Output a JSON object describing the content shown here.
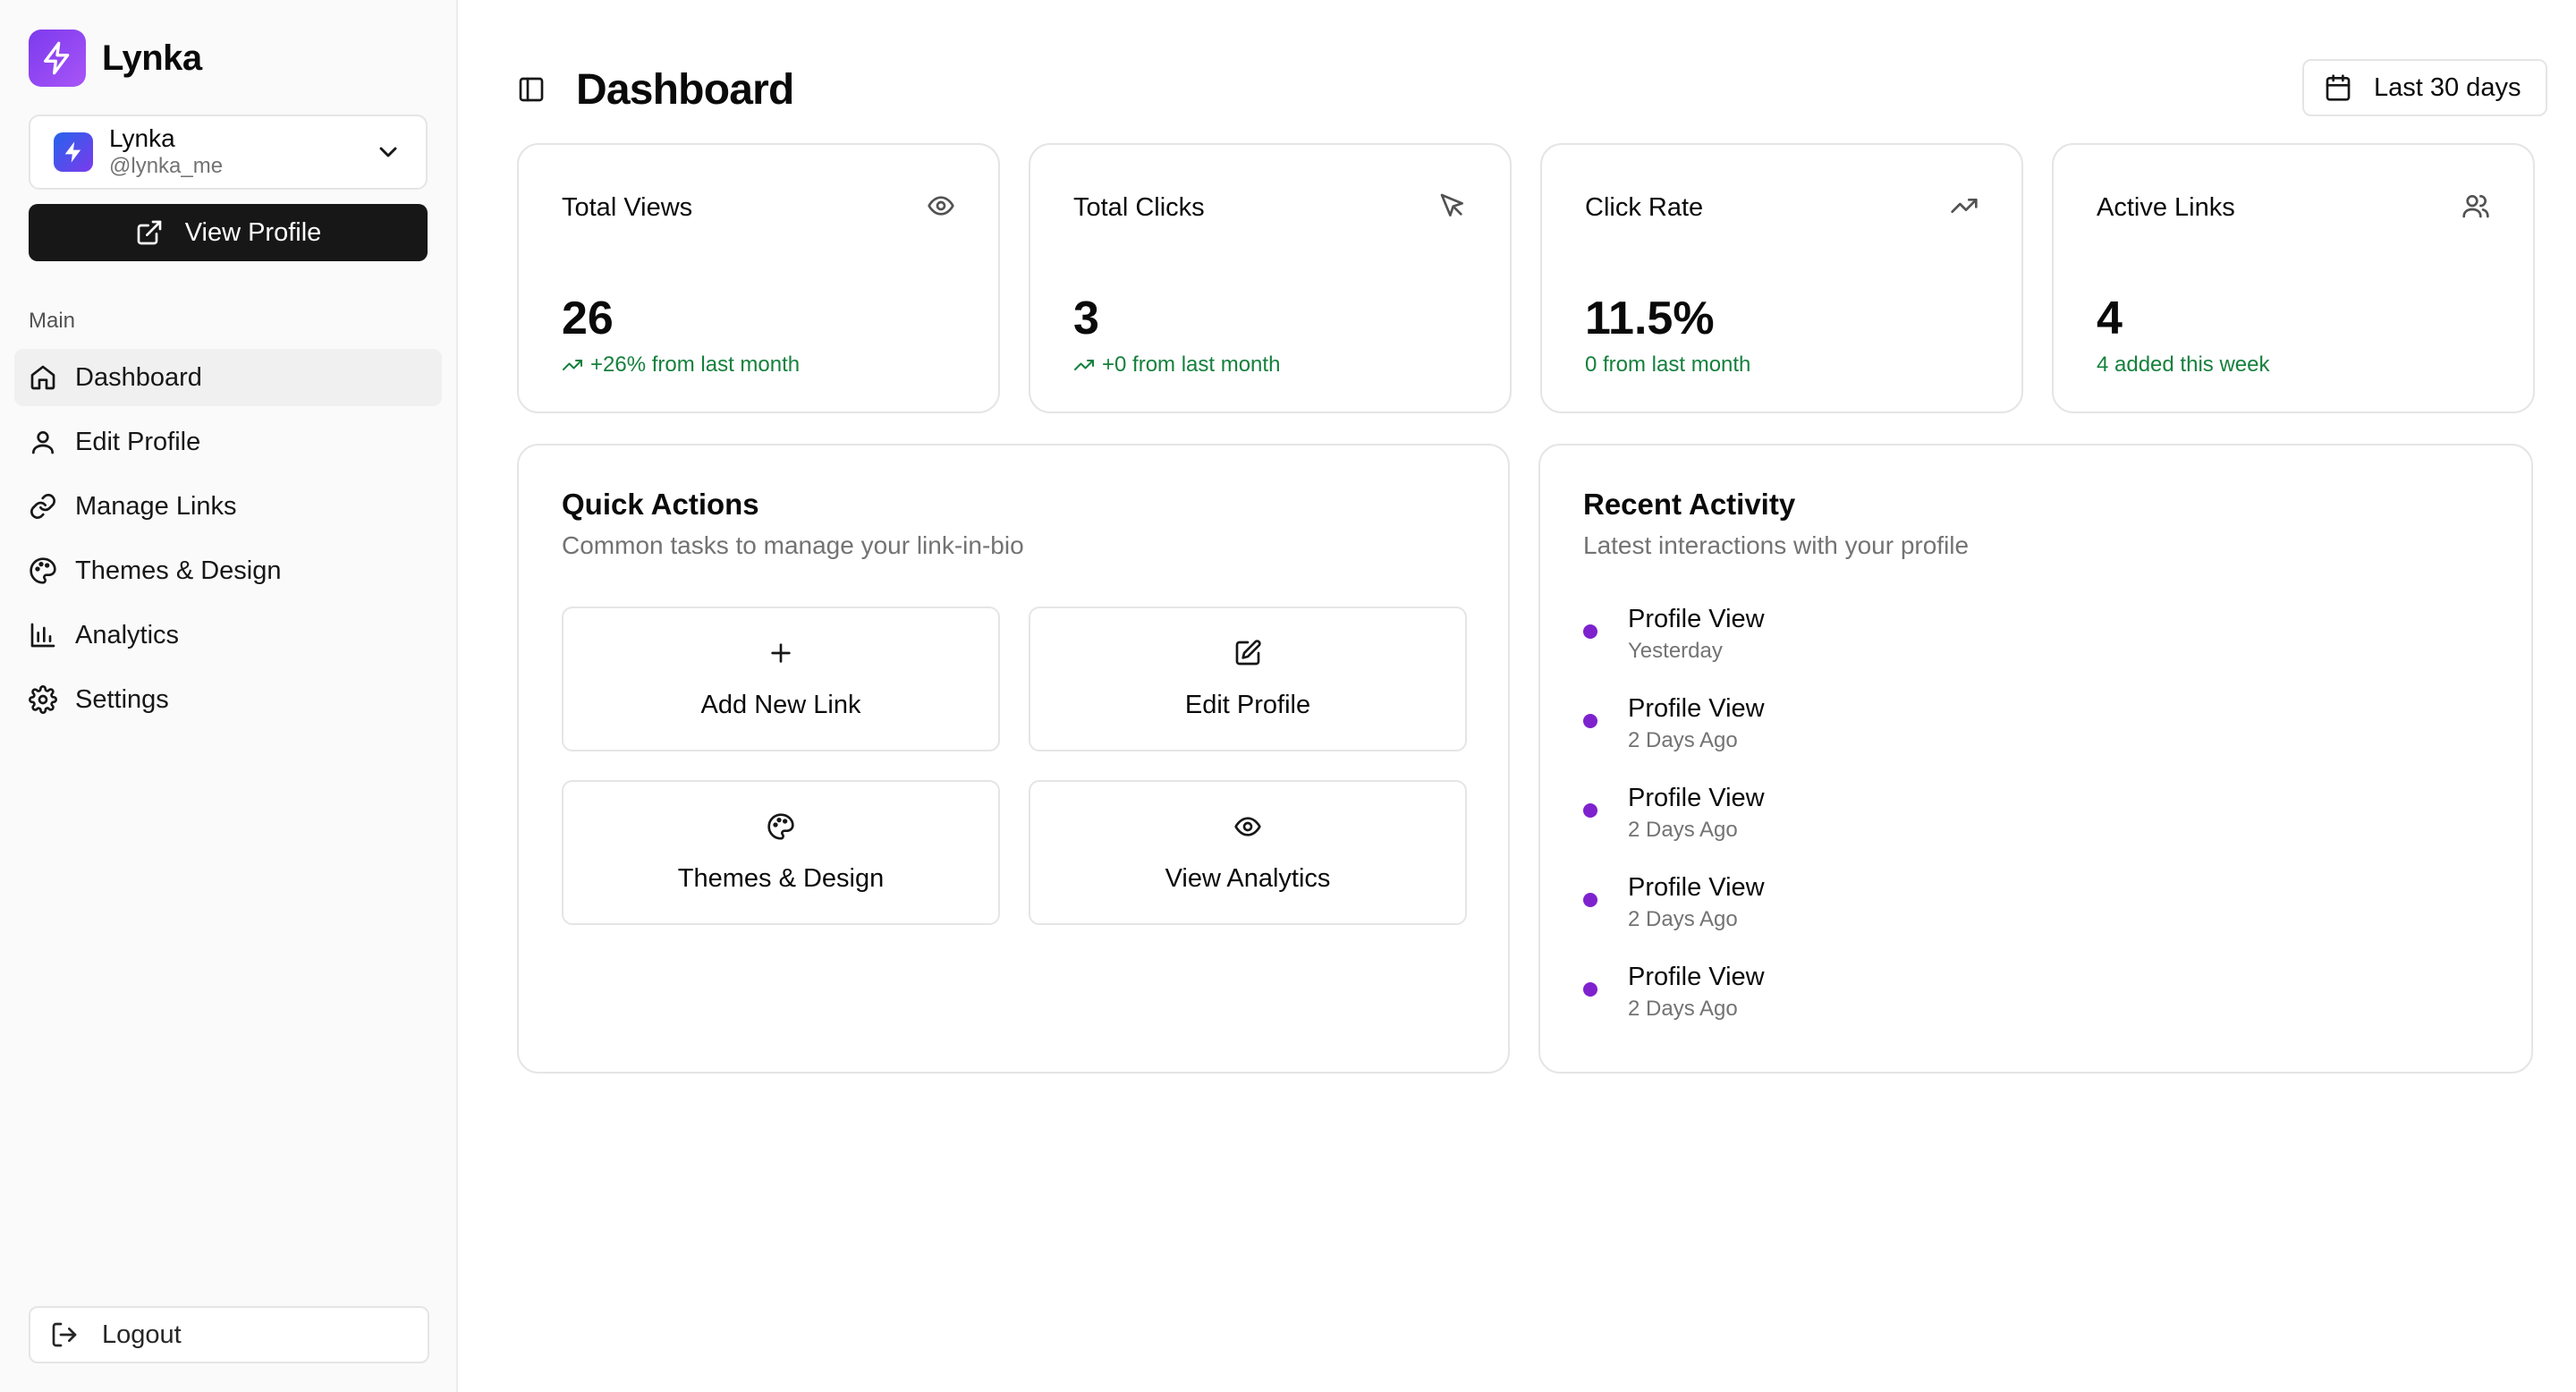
{
  "brand": {
    "name": "Lynka",
    "logo_icon": "lightning-bolt-icon",
    "accent": "#7c3aed"
  },
  "account": {
    "name": "Lynka",
    "handle": "@lynka_me"
  },
  "view_profile_label": "View Profile",
  "sidebar": {
    "section_label": "Main",
    "items": [
      {
        "label": "Dashboard",
        "icon": "home-icon",
        "active": true
      },
      {
        "label": "Edit Profile",
        "icon": "user-icon",
        "active": false
      },
      {
        "label": "Manage Links",
        "icon": "link-icon",
        "active": false
      },
      {
        "label": "Themes & Design",
        "icon": "palette-icon",
        "active": false
      },
      {
        "label": "Analytics",
        "icon": "bar-chart-icon",
        "active": false
      },
      {
        "label": "Settings",
        "icon": "gear-icon",
        "active": false
      }
    ],
    "logout_label": "Logout"
  },
  "header": {
    "title": "Dashboard",
    "date_range": "Last 30 days"
  },
  "stats": [
    {
      "title": "Total Views",
      "value": "26",
      "sub": "+26% from last month",
      "icon": "eye-icon",
      "trend_icon": true
    },
    {
      "title": "Total Clicks",
      "value": "3",
      "sub": "+0 from last month",
      "icon": "cursor-icon",
      "trend_icon": true
    },
    {
      "title": "Click Rate",
      "value": "11.5%",
      "sub": "0 from last month",
      "icon": "trending-up-icon",
      "trend_icon": false
    },
    {
      "title": "Active Links",
      "value": "4",
      "sub": "4 added this week",
      "icon": "users-icon",
      "trend_icon": false
    }
  ],
  "quick_actions": {
    "title": "Quick Actions",
    "description": "Common tasks to manage your link-in-bio",
    "actions": [
      {
        "label": "Add New Link",
        "icon": "plus-icon"
      },
      {
        "label": "Edit Profile",
        "icon": "edit-icon"
      },
      {
        "label": "Themes & Design",
        "icon": "palette-icon"
      },
      {
        "label": "View Analytics",
        "icon": "eye-icon"
      }
    ]
  },
  "recent_activity": {
    "title": "Recent Activity",
    "description": "Latest interactions with your profile",
    "items": [
      {
        "title": "Profile View",
        "time": "Yesterday"
      },
      {
        "title": "Profile View",
        "time": "2 Days Ago"
      },
      {
        "title": "Profile View",
        "time": "2 Days Ago"
      },
      {
        "title": "Profile View",
        "time": "2 Days Ago"
      },
      {
        "title": "Profile View",
        "time": "2 Days Ago"
      }
    ],
    "dot_color": "#7e22ce"
  },
  "colors": {
    "positive": "#15803d",
    "primary_button": "#171717"
  }
}
